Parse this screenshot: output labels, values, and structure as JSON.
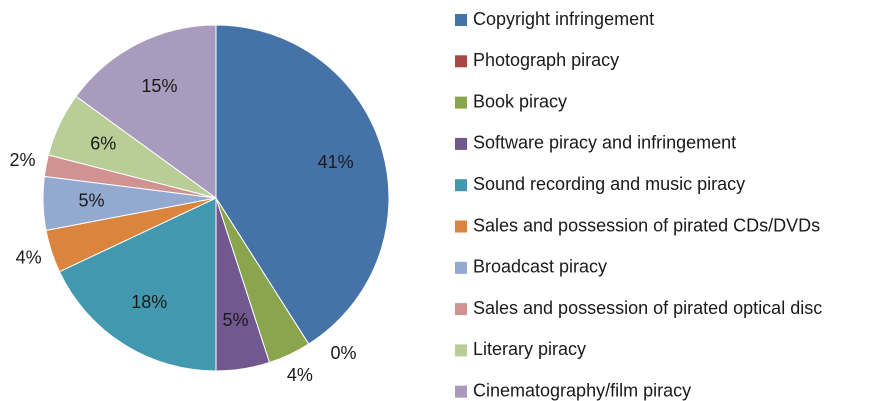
{
  "chart_data": {
    "type": "pie",
    "categories": [
      "Copyright infringement",
      "Photograph piracy",
      "Book piracy",
      "Software piracy and infringement",
      "Sound recording and music piracy",
      "Sales and possession of pirated CDs/DVDs",
      "Broadcast piracy",
      "Sales and possession of pirated optical disc",
      "Literary piracy",
      "Cinematography/film piracy"
    ],
    "values": [
      41,
      0,
      4,
      5,
      18,
      4,
      5,
      2,
      6,
      15
    ],
    "value_labels": [
      "41%",
      "0%",
      "4%",
      "5%",
      "18%",
      "4%",
      "5%",
      "2%",
      "6%",
      "15%"
    ],
    "colors": [
      "#4572A7",
      "#AA4643",
      "#89A54E",
      "#71588F",
      "#4198AF",
      "#DB843D",
      "#93A9CF",
      "#D19392",
      "#B9CD96",
      "#A99BBD"
    ],
    "legend": "right"
  }
}
